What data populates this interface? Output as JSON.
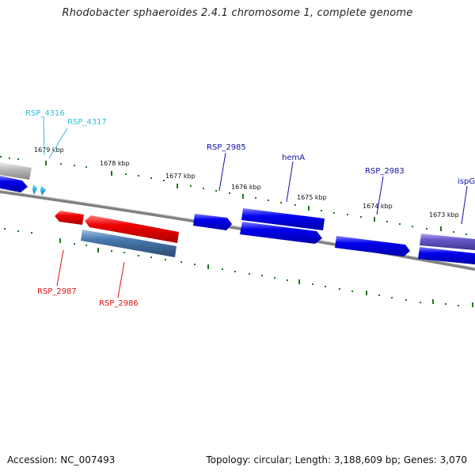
{
  "title": "Rhodobacter sphaeroides 2.4.1 chromosome 1, complete genome",
  "footer": {
    "accession": "Accession: NC_007493",
    "summary": "Topology: circular; Length: 3,188,609 bp; Genes: 3,070"
  },
  "colors": {
    "backbone": "#7f7f7f",
    "tick": "#1a7a1a",
    "forward_gene": "#0000ee",
    "reverse_gene": "#ee0000",
    "steelblue_gene": "#4a7ab0",
    "lightblue_gene": "#33bbee",
    "grey_gene": "#bbbbbb",
    "purple_gene": "#6a5acd",
    "label_cyan": "#33bbdd",
    "label_blue": "#1010aa",
    "label_red": "#dd1111"
  },
  "kbp_ticks": [
    "1679 kbp",
    "1678 kbp",
    "1677 kbp",
    "1676 kbp",
    "1675 kbp",
    "1674 kbp",
    "1673 kbp"
  ],
  "gene_labels": [
    {
      "text": "RSP_4316",
      "color": "label_cyan"
    },
    {
      "text": "RSP_4317",
      "color": "label_cyan"
    },
    {
      "text": "RSP_2985",
      "color": "label_blue"
    },
    {
      "text": "hemA",
      "color": "label_blue"
    },
    {
      "text": "RSP_2983",
      "color": "label_blue"
    },
    {
      "text": "ispG",
      "color": "label_blue"
    },
    {
      "text": "RSP_2987",
      "color": "label_red"
    },
    {
      "text": "RSP_2986",
      "color": "label_red"
    }
  ]
}
